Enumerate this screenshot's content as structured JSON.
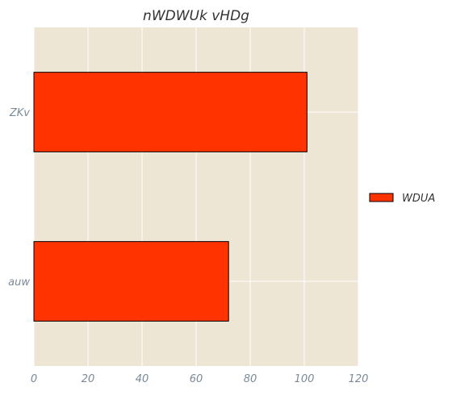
{
  "chart_data": {
    "type": "bar",
    "orientation": "horizontal",
    "title": "nWDWUk vHDg",
    "xlabel": "",
    "ylabel": "",
    "categories": [
      "auw",
      "ZKv"
    ],
    "series": [
      {
        "name": "WDUA",
        "values": [
          72,
          101
        ],
        "color": "#ff3300"
      }
    ],
    "xlim": [
      0,
      120
    ],
    "xticks": [
      0,
      20,
      40,
      60,
      80,
      100,
      120
    ],
    "grid": true,
    "legend_position": "right",
    "colors": {
      "plot_background": "#ede6d5",
      "grid": "#ffffff",
      "bar_edge": "#000000"
    }
  }
}
